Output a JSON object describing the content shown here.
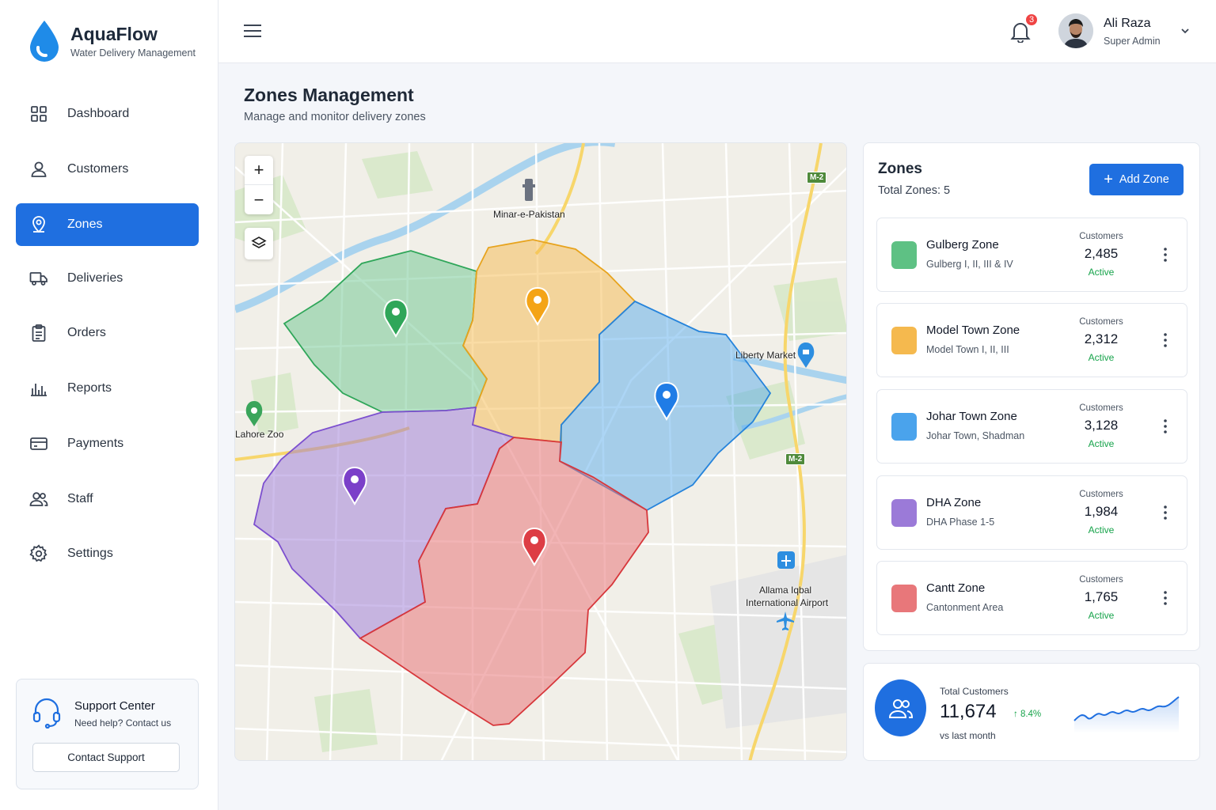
{
  "app": {
    "name": "AquaFlow",
    "tagline": "Water Delivery Management"
  },
  "sidebar": {
    "items": [
      {
        "label": "Dashboard",
        "icon": "grid-icon"
      },
      {
        "label": "Customers",
        "icon": "user-icon"
      },
      {
        "label": "Zones",
        "icon": "map-pin-icon",
        "active": true
      },
      {
        "label": "Deliveries",
        "icon": "truck-icon"
      },
      {
        "label": "Orders",
        "icon": "clipboard-icon"
      },
      {
        "label": "Reports",
        "icon": "bar-chart-icon"
      },
      {
        "label": "Payments",
        "icon": "credit-card-icon"
      },
      {
        "label": "Staff",
        "icon": "users-icon"
      },
      {
        "label": "Settings",
        "icon": "gear-icon"
      }
    ],
    "support": {
      "title": "Support Center",
      "subtitle": "Need help? Contact us",
      "button": "Contact Support"
    }
  },
  "header": {
    "notifications": "3",
    "user": {
      "name": "Ali Raza",
      "role": "Super Admin"
    }
  },
  "page": {
    "title": "Zones Management",
    "subtitle": "Manage and monitor delivery zones"
  },
  "map": {
    "zoom_in": "+",
    "zoom_out": "−",
    "pois": {
      "minar": "Minar-e-Pakistan",
      "zoo": "Lahore Zoo",
      "liberty": "Liberty Market",
      "airport_line1": "Allama Iqbal",
      "airport_line2": "International Airport"
    },
    "highway": "M-2"
  },
  "zones": {
    "title": "Zones",
    "total_label": "Total Zones: 5",
    "add_button": "Add Zone",
    "items": [
      {
        "name": "Gulberg Zone",
        "areas": "Gulberg I, II, III & IV",
        "customers_label": "Customers",
        "customers": "2,485",
        "status": "Active",
        "color": "#5ec184"
      },
      {
        "name": "Model Town Zone",
        "areas": "Model Town I, II, III",
        "customers_label": "Customers",
        "customers": "2,312",
        "status": "Active",
        "color": "#f5b94e"
      },
      {
        "name": "Johar Town Zone",
        "areas": "Johar Town, Shadman",
        "customers_label": "Customers",
        "customers": "3,128",
        "status": "Active",
        "color": "#4aa3ec"
      },
      {
        "name": "DHA Zone",
        "areas": "DHA Phase 1-5",
        "customers_label": "Customers",
        "customers": "1,984",
        "status": "Active",
        "color": "#9b7ad8"
      },
      {
        "name": "Cantt Zone",
        "areas": "Cantonment Area",
        "customers_label": "Customers",
        "customers": "1,765",
        "status": "Active",
        "color": "#e8777a"
      }
    ]
  },
  "totals": {
    "label": "Total Customers",
    "value": "11,674",
    "trend": "↑ 8.4%",
    "sub": "vs last month"
  },
  "colors": {
    "primary": "#1f6fe0",
    "success": "#16a34a",
    "badge": "#ef4444"
  }
}
